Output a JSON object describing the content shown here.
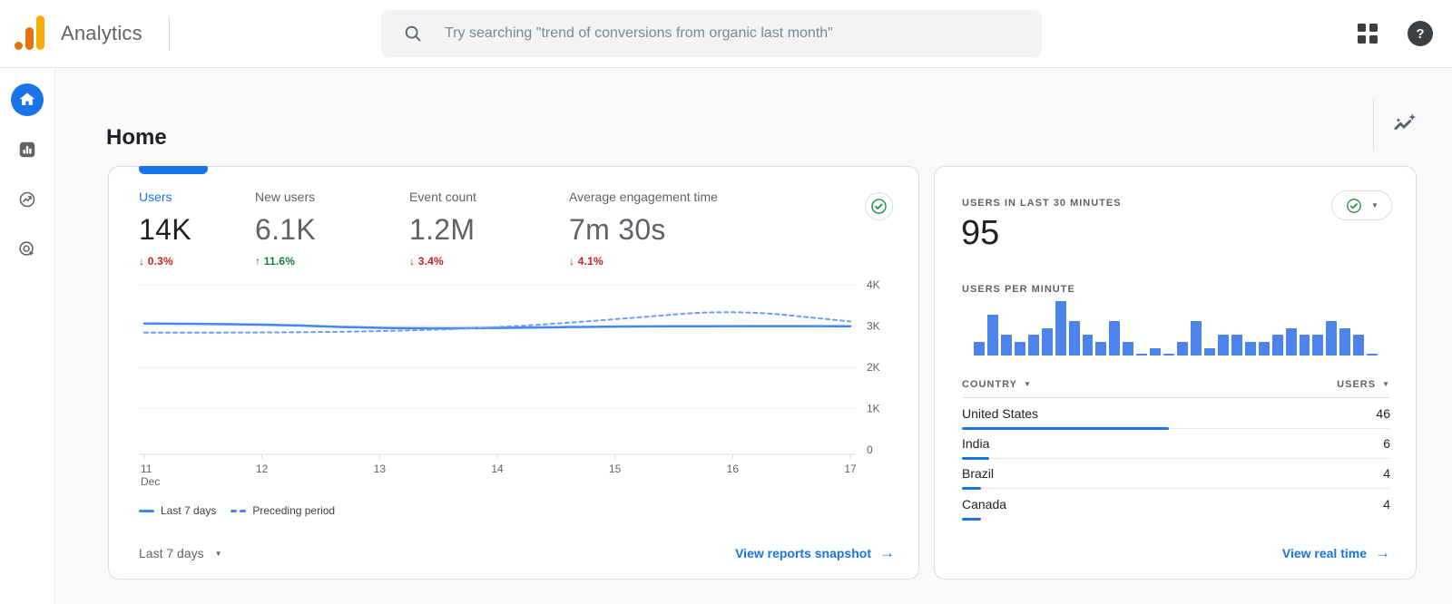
{
  "topbar": {
    "brand": "Analytics",
    "search_placeholder": "Try searching \"trend of conversions from organic last month\"",
    "help_glyph": "?"
  },
  "icons": {
    "caret_down": "▼",
    "arrow_right": "→"
  },
  "sidebar": {
    "items": [
      {
        "icon": "home-icon",
        "active": true
      },
      {
        "icon": "reports-bar-chart-icon",
        "active": false
      },
      {
        "icon": "explore-icon",
        "active": false
      },
      {
        "icon": "advertising-target-icon",
        "active": false
      }
    ]
  },
  "page": {
    "title": "Home"
  },
  "overview_card": {
    "metrics": [
      {
        "label": "Users",
        "value": "14K",
        "delta": "↓ 0.3%",
        "direction": "down",
        "selected": true
      },
      {
        "label": "New users",
        "value": "6.1K",
        "delta": "↑ 11.6%",
        "direction": "up",
        "selected": false
      },
      {
        "label": "Event count",
        "value": "1.2M",
        "delta": "↓ 3.4%",
        "direction": "down",
        "selected": false
      },
      {
        "label": "Average engagement time",
        "value": "7m 30s",
        "delta": "↓ 4.1%",
        "direction": "down",
        "selected": false
      }
    ],
    "legend": [
      {
        "label": "Last 7 days",
        "style": "solid"
      },
      {
        "label": "Preceding period",
        "style": "dashed"
      }
    ],
    "date_range_selector": "Last 7 days",
    "footer_link": "View reports snapshot"
  },
  "realtime_card": {
    "title": "USERS IN LAST 30 MINUTES",
    "active_users": "95",
    "bar_chart_title": "USERS PER MINUTE",
    "table": {
      "columns": [
        "COUNTRY",
        "USERS"
      ],
      "rows": [
        {
          "country": "United States",
          "users": 46
        },
        {
          "country": "India",
          "users": 6
        },
        {
          "country": "Brazil",
          "users": 4
        },
        {
          "country": "Canada",
          "users": 4
        }
      ]
    },
    "footer_link": "View real time"
  },
  "chart_data": [
    {
      "type": "line",
      "title": "Users by day: last 7 days vs preceding period",
      "x": [
        "11",
        "12",
        "13",
        "14",
        "15",
        "16",
        "17"
      ],
      "x_month": "Dec",
      "series": [
        {
          "name": "Last 7 days",
          "style": "solid",
          "values": [
            3060,
            3050,
            2940,
            2950,
            2990,
            3000,
            2995
          ]
        },
        {
          "name": "Preceding period",
          "style": "dashed",
          "values": [
            2840,
            2840,
            2870,
            2960,
            3160,
            3400,
            3110
          ]
        }
      ],
      "ylim": [
        0,
        4000
      ],
      "y_ticks": [
        "4K",
        "3K",
        "2K",
        "1K",
        "0"
      ],
      "grid": true,
      "legend_position": "bottom"
    },
    {
      "type": "bar",
      "title": "USERS PER MINUTE",
      "values": [
        2,
        6,
        3,
        2,
        3,
        4,
        8,
        5,
        3,
        2,
        5,
        2,
        0,
        1,
        0,
        2,
        5,
        1,
        3,
        3,
        2,
        2,
        3,
        4,
        3,
        3,
        5,
        4,
        3,
        0
      ],
      "ylim": [
        0,
        8
      ]
    }
  ],
  "colors": {
    "accent_blue": "#1a73e8",
    "chart_blue": "#4285f4",
    "chart_blue_dashed": "#669df6",
    "bar_blue": "#4c84ec",
    "negative_red": "#c5221f",
    "positive_green": "#188038",
    "quality_green": "#1e8e3e",
    "brand_amber": "#f9ab00",
    "brand_orange": "#e8710a",
    "background": "#f8f9fa"
  }
}
